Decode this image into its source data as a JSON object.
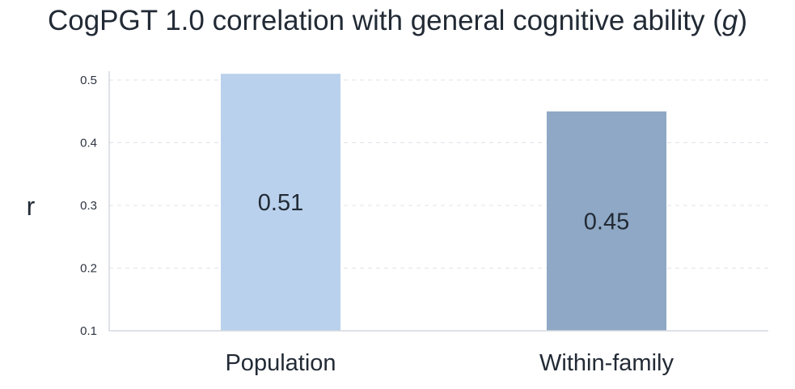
{
  "chart_data": {
    "type": "bar",
    "title_main": "CogPGT 1.0 correlation with general cognitive ability (",
    "title_var": "g",
    "title_end": ")",
    "ylabel": "r",
    "xlabel": "",
    "categories": [
      "Population",
      "Within-family"
    ],
    "values": [
      0.51,
      0.45
    ],
    "value_labels": [
      "0.51",
      "0.45"
    ],
    "yticks": [
      "0.1",
      "0.2",
      "0.3",
      "0.4",
      "0.5"
    ],
    "ytick_values": [
      0.1,
      0.2,
      0.3,
      0.4,
      0.5
    ],
    "ylim": [
      0.1,
      0.51
    ],
    "grid": true,
    "colors": [
      "#b9d1ec",
      "#8ea8c5"
    ]
  }
}
